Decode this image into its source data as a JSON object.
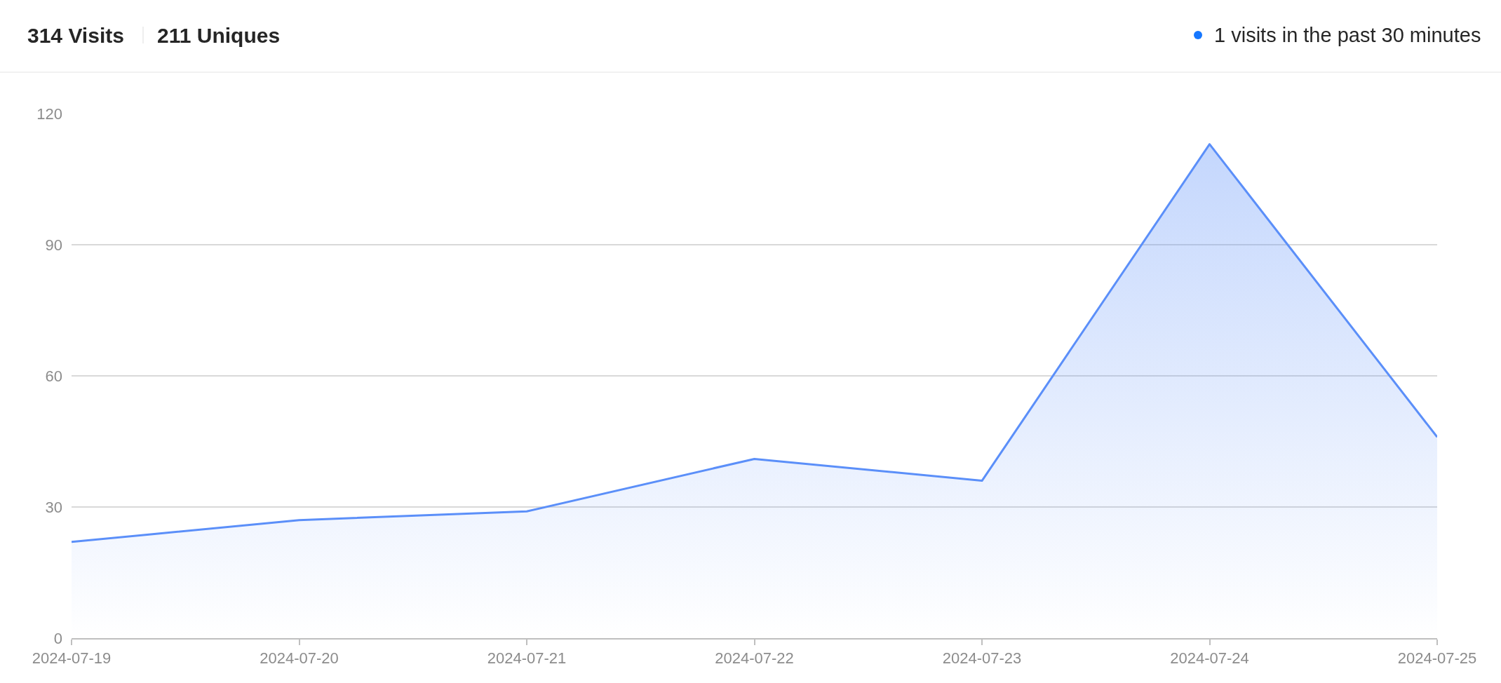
{
  "chart_data": {
    "type": "area",
    "title": "314 Visits",
    "subtitle": "211 Uniques",
    "annotations": [
      "1 visits in the past 30 minutes"
    ],
    "x": [
      "2024-07-19",
      "2024-07-20",
      "2024-07-21",
      "2024-07-22",
      "2024-07-23",
      "2024-07-24",
      "2024-07-25"
    ],
    "values": [
      22,
      27,
      29,
      41,
      36,
      113,
      46
    ],
    "color": "#5b8ff9",
    "xlim": [
      "2024-07-19",
      "2024-07-25"
    ],
    "xticks": [
      "2024-07-19",
      "2024-07-20",
      "2024-07-21",
      "2024-07-22",
      "2024-07-23",
      "2024-07-24",
      "2024-07-25"
    ],
    "ylim": [
      0,
      120
    ],
    "yticks": [
      0,
      30,
      60,
      90,
      120
    ],
    "grid": "y"
  }
}
